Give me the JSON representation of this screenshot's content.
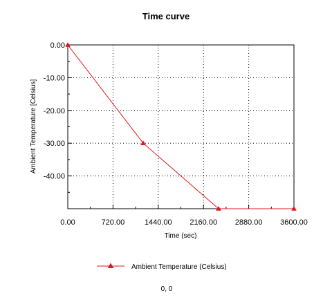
{
  "chart_data": {
    "type": "line",
    "title": "Time curve",
    "xlabel": "Time (sec)",
    "ylabel": "Ambient Temperature [Celsius]",
    "xlim": [
      0,
      3600
    ],
    "ylim": [
      -50,
      0
    ],
    "xticks": [
      0,
      720,
      1440,
      2160,
      2880,
      3600
    ],
    "xtick_labels": [
      "0.00",
      "720.00",
      "1440.00",
      "2160.00",
      "2880.00",
      "3600.00"
    ],
    "yticks": [
      0,
      -10,
      -20,
      -30,
      -40
    ],
    "ytick_labels": [
      "0.00",
      "-10.00",
      "-20.00",
      "-30.00",
      "-40.00"
    ],
    "grid": true,
    "legend_position": "bottom-center",
    "series": [
      {
        "name": "Ambient Temperature (Celsius)",
        "color": "#e0141e",
        "marker": "triangle",
        "x": [
          0,
          1200,
          2400,
          3600
        ],
        "y": [
          0,
          -30,
          -50,
          -50
        ]
      }
    ]
  },
  "footer": {
    "coord_readout": "0, 0"
  }
}
